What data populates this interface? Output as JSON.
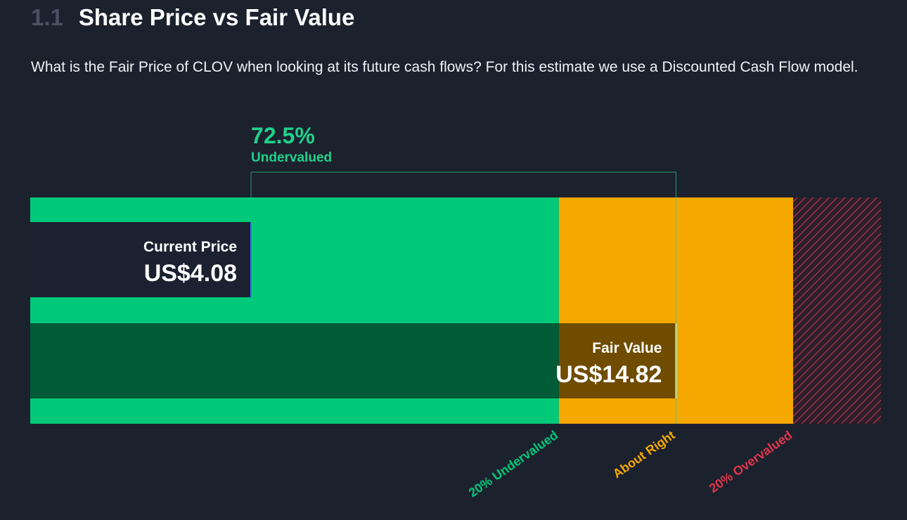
{
  "section_number": "1.1",
  "title": "Share Price vs Fair Value",
  "description": "What is the Fair Price of CLOV when looking at its future cash flows? For this estimate we use a Discounted Cash Flow model.",
  "chart_data": {
    "type": "valuation",
    "xlim": [
      -1.5,
      20
    ],
    "discount": "72.5%",
    "discount_label": "Undervalued",
    "discount_color": "#1fd18a",
    "series": [
      {
        "name": "Current Price",
        "values": [
          4.08
        ],
        "value_labels": [
          "US$4.08"
        ],
        "color": "#1b2130",
        "edge": "#2f7cf6"
      },
      {
        "name": "Fair Value",
        "values": [
          14.82
        ],
        "value_labels": [
          "US$14.82"
        ],
        "color": "rgba(0,0,0,0.55)",
        "edge": "#ffffff"
      }
    ],
    "thresholds": [
      {
        "value": 11.86,
        "label": "20% Undervalued",
        "color": "#00c979"
      },
      {
        "value": 14.82,
        "label": "About Right",
        "color": "#f5a800"
      },
      {
        "value": 17.78,
        "label": "20% Overvalued",
        "color": "#e0364b"
      }
    ]
  }
}
